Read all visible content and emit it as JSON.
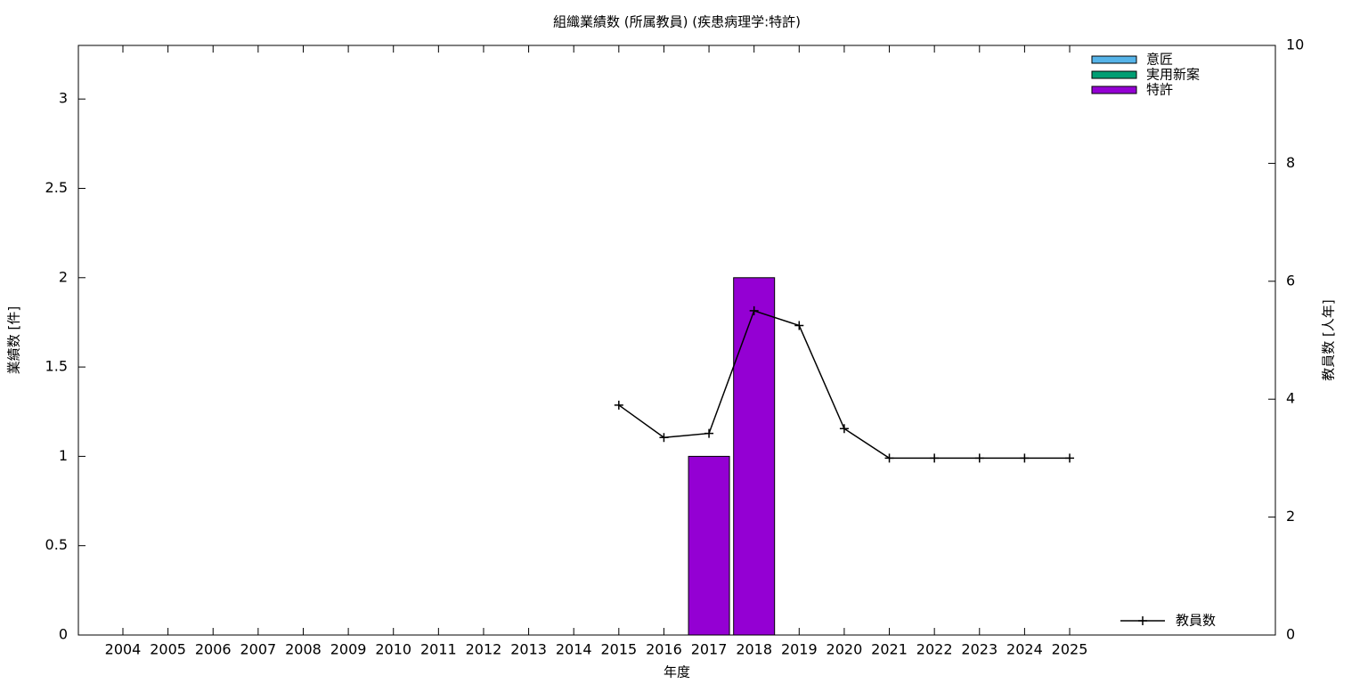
{
  "chart_data": {
    "type": "bar",
    "title": "組織業績数 (所属教員) (疾患病理学:特許)",
    "x_label": "年度",
    "y_label": "業績数 [件]",
    "y2_label": "教員数 [人年]",
    "categories": [
      "2004",
      "2005",
      "2006",
      "2007",
      "2008",
      "2009",
      "2010",
      "2011",
      "2012",
      "2013",
      "2014",
      "2015",
      "2016",
      "2017",
      "2018",
      "2019",
      "2020",
      "2021",
      "2022",
      "2023",
      "2024",
      "2025"
    ],
    "series": [
      {
        "name": "意匠",
        "color": "#56b4e9",
        "values": [
          0,
          0,
          0,
          0,
          0,
          0,
          0,
          0,
          0,
          0,
          0,
          0,
          0,
          0,
          0,
          0,
          0,
          0,
          0,
          0,
          0,
          0
        ]
      },
      {
        "name": "実用新案",
        "color": "#009e73",
        "values": [
          0,
          0,
          0,
          0,
          0,
          0,
          0,
          0,
          0,
          0,
          0,
          0,
          0,
          0,
          0,
          0,
          0,
          0,
          0,
          0,
          0,
          0
        ]
      },
      {
        "name": "特許",
        "color": "#9400d3",
        "values": [
          0,
          0,
          0,
          0,
          0,
          0,
          0,
          0,
          0,
          0,
          0,
          0,
          0,
          1,
          2,
          0,
          0,
          0,
          0,
          0,
          0,
          0
        ]
      },
      {
        "name": "教員数",
        "color": "#000000",
        "type": "line",
        "axis": "y2",
        "values": [
          null,
          null,
          null,
          null,
          null,
          null,
          null,
          null,
          null,
          null,
          null,
          3.9,
          3.35,
          3.42,
          5.5,
          5.25,
          3.5,
          3,
          3,
          3,
          3,
          3
        ]
      }
    ],
    "ylim": [
      0,
      3.3
    ],
    "yticks": [
      0,
      0.5,
      1,
      1.5,
      2,
      2.5,
      3
    ],
    "y2lim": [
      0,
      10
    ],
    "y2ticks": [
      0,
      2,
      4,
      6,
      8,
      10
    ],
    "legend": "top-right"
  }
}
